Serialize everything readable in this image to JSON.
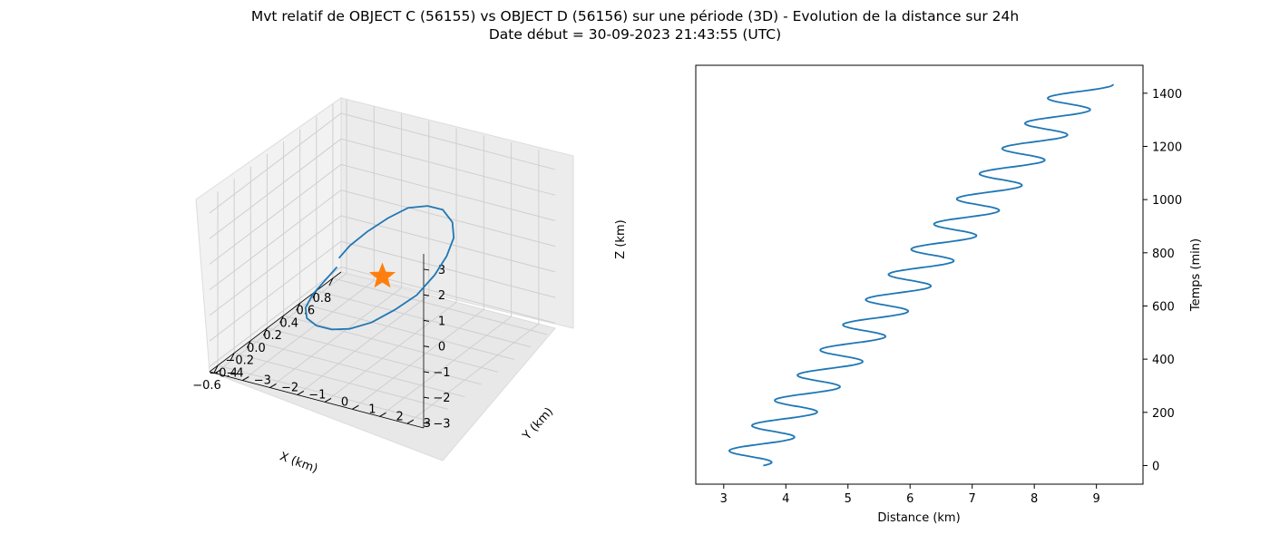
{
  "title": "Mvt relatif de OBJECT C (56155) vs OBJECT D (56156) sur une période (3D) - Evolution de la distance sur 24h",
  "subtitle": "Date début = 30-09-2023 21:43:55 (UTC)",
  "colors": {
    "trajectory": "#1f77b4",
    "marker": "#ff7f0e",
    "pane": "#f2f2f2",
    "grid": "#cccccc"
  },
  "chart_data": [
    {
      "type": "line3d",
      "xlabel": "X (km)",
      "ylabel": "Y (km)",
      "zlabel": "Z (km)",
      "xticks": [
        "−0.6",
        "−0.4",
        "−0.2",
        "0.0",
        "0.2",
        "0.4",
        "0.6",
        "0.8"
      ],
      "yticks": [
        "−4",
        "−3",
        "−2",
        "−1",
        "0",
        "1",
        "2",
        "3"
      ],
      "zticks": [
        "−3",
        "−2",
        "−1",
        "0",
        "1",
        "2",
        "3"
      ],
      "marker": {
        "symbol": "star",
        "x": 0,
        "y": 0,
        "z": 0
      },
      "series": [
        {
          "x": [
            0.55,
            0.5,
            0.42,
            0.3,
            0.15,
            0.0,
            -0.15,
            -0.3,
            -0.4,
            -0.45,
            -0.45,
            -0.4,
            -0.32,
            -0.2,
            -0.05,
            0.1,
            0.25,
            0.38,
            0.47,
            0.52,
            0.54,
            0.54
          ],
          "y": [
            -3.3,
            -3.6,
            -3.8,
            -3.7,
            -3.2,
            -2.4,
            -1.4,
            -0.3,
            0.8,
            1.8,
            2.6,
            3.1,
            3.3,
            3.2,
            2.7,
            1.9,
            0.9,
            -0.2,
            -1.2,
            -2.1,
            -2.8,
            -3.2
          ],
          "z": [
            -1.9,
            -2.4,
            -2.8,
            -3.0,
            -2.9,
            -2.6,
            -2.1,
            -1.4,
            -0.6,
            0.3,
            1.1,
            1.9,
            2.5,
            2.9,
            3.0,
            2.9,
            2.4,
            1.7,
            0.8,
            -0.1,
            -0.9,
            -1.5
          ]
        }
      ]
    },
    {
      "type": "line",
      "xlabel": "Distance (km)",
      "ylabel": "Temps (min)",
      "xlim": [
        2.55,
        9.75
      ],
      "ylim": [
        -70,
        1505
      ],
      "xticks": [
        3,
        4,
        5,
        6,
        7,
        8,
        9
      ],
      "yticks": [
        0,
        200,
        400,
        600,
        800,
        1000,
        1200,
        1400
      ],
      "trend": {
        "distance_start": 3.3,
        "distance_end": 8.85,
        "amplitude": 0.43,
        "period_min": 94.7,
        "phase_start": 0.9,
        "time_end": 1435
      }
    }
  ]
}
